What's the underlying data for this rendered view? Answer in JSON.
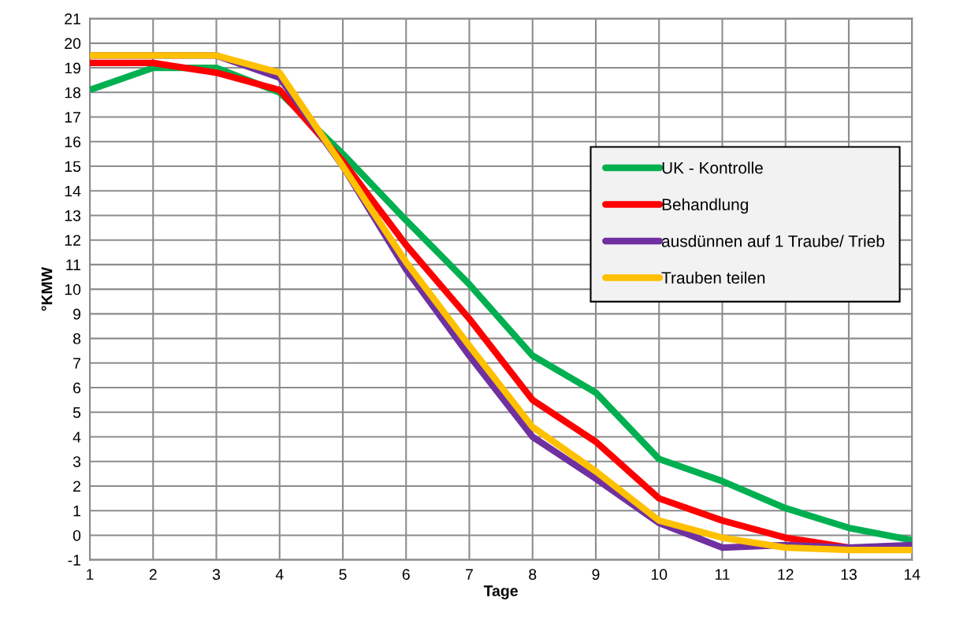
{
  "chart_data": {
    "type": "line",
    "xlabel": "Tage",
    "ylabel": "°KMW",
    "x": [
      1,
      2,
      3,
      4,
      5,
      6,
      7,
      8,
      9,
      10,
      11,
      12,
      13,
      14
    ],
    "xlim": [
      1,
      14
    ],
    "xticks": [
      1,
      2,
      3,
      4,
      5,
      6,
      7,
      8,
      9,
      10,
      11,
      12,
      13,
      14
    ],
    "ylim": [
      -1,
      21
    ],
    "yticks": [
      -1,
      0,
      1,
      2,
      3,
      4,
      5,
      6,
      7,
      8,
      9,
      10,
      11,
      12,
      13,
      14,
      15,
      16,
      17,
      18,
      19,
      20,
      21
    ],
    "grid": true,
    "legend": "center right",
    "marker": "none",
    "line_style": "solid",
    "series": [
      {
        "name": "UK - Kontrolle",
        "color": "#00b050",
        "values": [
          18.1,
          19.0,
          19.0,
          18.0,
          15.5,
          12.8,
          10.2,
          7.3,
          5.8,
          3.1,
          2.2,
          1.1,
          0.3,
          -0.2
        ]
      },
      {
        "name": "Behandlung",
        "color": "#ff0000",
        "values": [
          19.2,
          19.2,
          18.8,
          18.1,
          15.2,
          11.8,
          8.8,
          5.5,
          3.8,
          1.5,
          0.6,
          -0.1,
          -0.5,
          null
        ]
      },
      {
        "name": "ausdünnen auf 1 Traube/ Trieb",
        "color": "#7030a0",
        "values": [
          19.5,
          19.5,
          19.5,
          18.6,
          15.0,
          10.8,
          7.3,
          4.0,
          2.3,
          0.5,
          -0.5,
          -0.4,
          -0.5,
          -0.4
        ]
      },
      {
        "name": "Trauben teilen",
        "color": "#ffc000",
        "values": [
          19.5,
          19.5,
          19.5,
          18.8,
          15.0,
          11.1,
          7.7,
          4.4,
          2.6,
          0.6,
          -0.1,
          -0.5,
          -0.6,
          -0.6
        ]
      }
    ]
  }
}
